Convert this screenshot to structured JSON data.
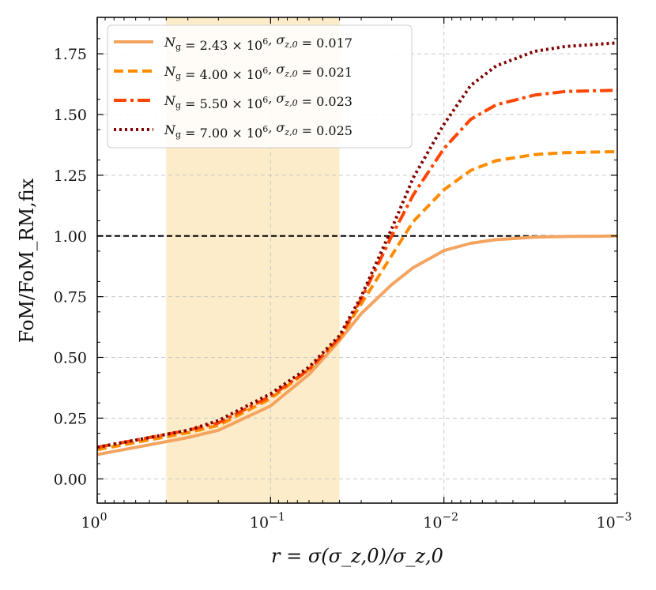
{
  "chart_data": {
    "type": "line",
    "title": "",
    "xlabel": "r = σ(σ_z,0)/σ_z,0",
    "ylabel": "FoM/FoM_RM,fix",
    "xscale": "log",
    "xlim": [
      1.0,
      0.001
    ],
    "ylim": [
      -0.1,
      1.9
    ],
    "grid": true,
    "x_ticks": [
      {
        "value": 1.0,
        "base": "10",
        "exp": "0"
      },
      {
        "value": 0.1,
        "base": "10",
        "exp": "−1"
      },
      {
        "value": 0.01,
        "base": "10",
        "exp": "−2"
      },
      {
        "value": 0.001,
        "base": "10",
        "exp": "−3"
      }
    ],
    "y_ticks": [
      "0.00",
      "0.25",
      "0.50",
      "0.75",
      "1.00",
      "1.25",
      "1.50",
      "1.75"
    ],
    "y_tick_values": [
      0.0,
      0.25,
      0.5,
      0.75,
      1.0,
      1.25,
      1.5,
      1.75
    ],
    "shaded_region": {
      "x_from": 0.4,
      "x_to": 0.04,
      "color": "#fdecc9"
    },
    "reference_line": {
      "y": 1.0,
      "color": "#000000"
    },
    "legend_position": "top-left",
    "series": [
      {
        "name": "N_g = 2.43 × 10^6, σ_z,0 = 0.017",
        "ng_mant": "2.43",
        "sigma": "0.017",
        "color": "#f4a460",
        "style": "solid",
        "x": [
          1.0,
          0.5,
          0.3,
          0.2,
          0.1,
          0.06,
          0.04,
          0.03,
          0.02,
          0.015,
          0.01,
          0.007,
          0.005,
          0.003,
          0.002,
          0.001
        ],
        "y": [
          0.1,
          0.14,
          0.17,
          0.2,
          0.3,
          0.43,
          0.57,
          0.68,
          0.8,
          0.87,
          0.94,
          0.97,
          0.985,
          0.995,
          0.998,
          1.0
        ]
      },
      {
        "name": "N_g = 4.00 × 10^6, σ_z,0 = 0.021",
        "ng_mant": "4.00",
        "sigma": "0.021",
        "color": "#ff8c00",
        "style": "dashed",
        "x": [
          1.0,
          0.5,
          0.3,
          0.2,
          0.1,
          0.06,
          0.04,
          0.03,
          0.02,
          0.015,
          0.01,
          0.007,
          0.005,
          0.003,
          0.002,
          0.001
        ],
        "y": [
          0.12,
          0.16,
          0.19,
          0.22,
          0.33,
          0.45,
          0.58,
          0.72,
          0.92,
          1.06,
          1.19,
          1.27,
          1.31,
          1.335,
          1.343,
          1.347
        ]
      },
      {
        "name": "N_g = 5.50 × 10^6, σ_z,0 = 0.023",
        "ng_mant": "5.50",
        "sigma": "0.023",
        "color": "#ff4500",
        "style": "dashdot",
        "x": [
          1.0,
          0.5,
          0.3,
          0.2,
          0.1,
          0.06,
          0.04,
          0.03,
          0.02,
          0.015,
          0.01,
          0.007,
          0.005,
          0.003,
          0.002,
          0.001
        ],
        "y": [
          0.13,
          0.17,
          0.2,
          0.23,
          0.34,
          0.45,
          0.58,
          0.74,
          1.0,
          1.17,
          1.36,
          1.48,
          1.54,
          1.58,
          1.595,
          1.6
        ]
      },
      {
        "name": "N_g = 7.00 × 10^6, σ_z,0 = 0.025",
        "ng_mant": "7.00",
        "sigma": "0.025",
        "color": "#800000",
        "style": "dotted",
        "x": [
          1.0,
          0.5,
          0.3,
          0.2,
          0.1,
          0.06,
          0.04,
          0.03,
          0.02,
          0.015,
          0.01,
          0.007,
          0.005,
          0.003,
          0.002,
          0.001
        ],
        "y": [
          0.13,
          0.17,
          0.2,
          0.24,
          0.35,
          0.46,
          0.59,
          0.75,
          1.03,
          1.24,
          1.46,
          1.62,
          1.7,
          1.76,
          1.78,
          1.795
        ]
      }
    ]
  }
}
